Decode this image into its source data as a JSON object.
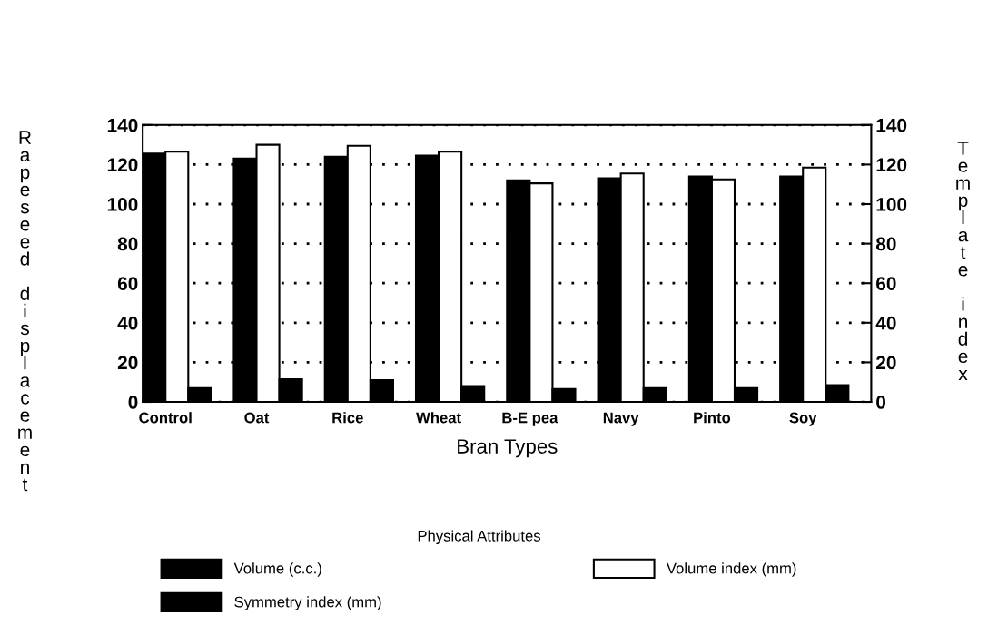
{
  "chart_data": {
    "type": "bar",
    "xlabel": "Bran Types",
    "ylabel": "Rapeseed displacement",
    "y2label": "Template index",
    "legend_title": "Physical Attributes",
    "categories": [
      "Control",
      "Oat",
      "Rice",
      "Wheat",
      "B-E pea",
      "Navy",
      "Pinto",
      "Soy"
    ],
    "series": [
      {
        "name": "Volume (c.c.)",
        "color": "#000000",
        "values": [
          125.5,
          123,
          124,
          124.5,
          112,
          113,
          114,
          114
        ]
      },
      {
        "name": "Volume index (mm)",
        "color": "#ffffff",
        "values": [
          126.5,
          130,
          129.5,
          126.5,
          110.5,
          115.5,
          112.5,
          118.5
        ]
      },
      {
        "name": "Symmetry index (mm)",
        "color": "#000000",
        "values": [
          7,
          11.5,
          11,
          8,
          6.5,
          7,
          7,
          8.5
        ]
      }
    ],
    "ylim": [
      0,
      140
    ],
    "yticks": [
      0,
      20,
      40,
      60,
      80,
      100,
      120,
      140
    ],
    "y2lim": [
      0,
      140
    ],
    "y2ticks": [
      0,
      20,
      40,
      60,
      80,
      100,
      120,
      140
    ],
    "grid": "y",
    "legend": "bottom"
  }
}
